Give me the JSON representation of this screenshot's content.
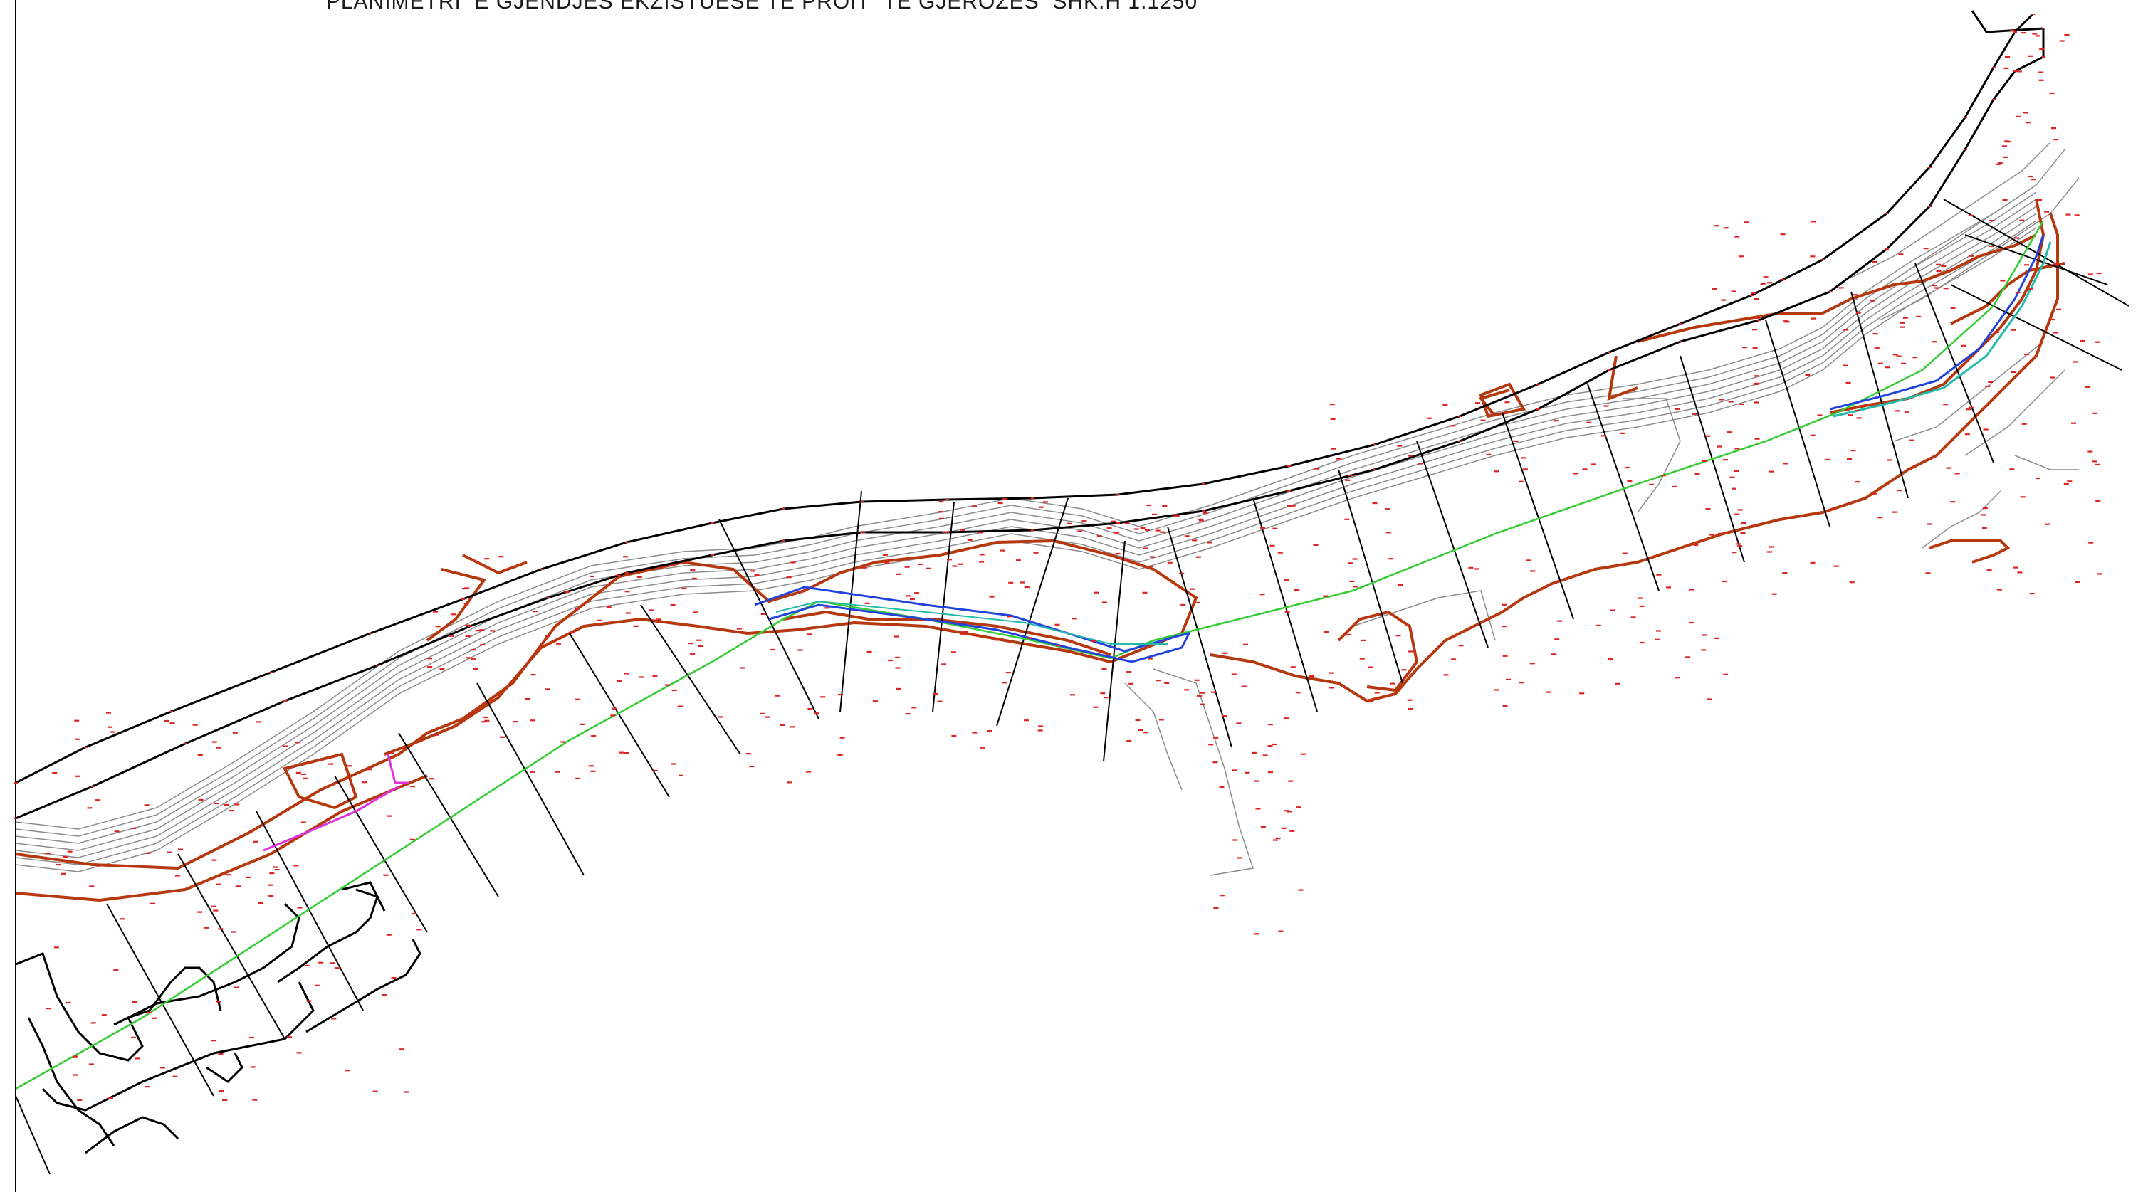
{
  "drawing": {
    "title": "PLANIMETRI  E GJENDJES EKZISTUESE TE PROIT  TE GJEROZES  SHK.H 1:1250",
    "colors": {
      "road": "#000000",
      "contour": "#8c8c8c",
      "index_contour": "#b5380f",
      "axis": "#33cc33",
      "channel": "#2244dd",
      "channel_inner": "#22bbaa",
      "detail": "#dd33dd",
      "section": "#000000",
      "point": "#dd2222",
      "station_text": "#2a3dd6"
    }
  }
}
